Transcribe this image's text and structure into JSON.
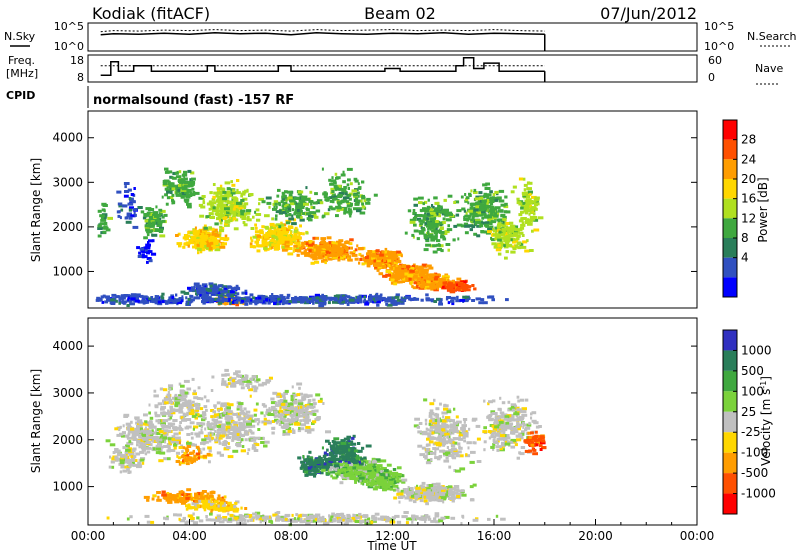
{
  "header": {
    "station": "Kodiak (fitACF)",
    "beam": "Beam 02",
    "date": "07/Jun/2012"
  },
  "side_labels": {
    "nsky": "N.Sky",
    "freq_line1": "Freq.",
    "freq_line2": "[MHz]",
    "cpid": "CPID",
    "nsearch": "N.Search",
    "nave": "Nave"
  },
  "cpid_text": "normalsound (fast) -157 RF",
  "chart_data": [
    {
      "type": "line",
      "name": "noise",
      "x_range": [
        0,
        24
      ],
      "y_ticks": [
        "10^5",
        "10^0"
      ],
      "right_ticks": [
        "10^5",
        "10^0"
      ],
      "series": [
        {
          "name": "N.Sky",
          "x": [
            0.5,
            1,
            2,
            3,
            4,
            5,
            6,
            7,
            8,
            9,
            10,
            11,
            12,
            13,
            14,
            15,
            16,
            17,
            18
          ],
          "y": [
            3.2,
            3.4,
            3.3,
            3.5,
            3.3,
            3.6,
            3.4,
            3.5,
            3.2,
            3.6,
            3.4,
            3.3,
            3.5,
            3.4,
            3.6,
            3.3,
            3.5,
            3.4,
            3.3
          ]
        },
        {
          "name": "N.Search",
          "x": [
            0.5,
            1,
            2,
            3,
            4,
            5,
            6,
            7,
            8,
            9,
            10,
            11,
            12,
            13,
            14,
            15,
            16,
            17,
            18
          ],
          "y": [
            3.8,
            4.0,
            3.9,
            4.1,
            4.0,
            4.2,
            4.0,
            4.1,
            3.9,
            4.2,
            4.0,
            4.1,
            4.2,
            4.0,
            4.1,
            4.0,
            4.2,
            4.0,
            3.9
          ]
        }
      ]
    },
    {
      "type": "line",
      "name": "frequency",
      "x_range": [
        0,
        24
      ],
      "y_ticks": [
        18,
        8
      ],
      "right_ticks": [
        60,
        0
      ],
      "series": [
        {
          "name": "Freq.",
          "x": [
            0.5,
            0.9,
            0.9,
            1.2,
            1.2,
            1.8,
            1.8,
            2.5,
            2.5,
            4.7,
            4.7,
            5.0,
            5.0,
            7.5,
            7.5,
            8.0,
            8.0,
            11.7,
            11.7,
            12.3,
            12.3,
            14.5,
            14.5,
            14.8,
            14.8,
            15.2,
            15.2,
            15.6,
            15.6,
            16.2,
            16.2,
            18.0
          ],
          "y": [
            10.5,
            10.5,
            15.5,
            15.5,
            12,
            12,
            14,
            14,
            12,
            12,
            14,
            14,
            12,
            12,
            14,
            14,
            12,
            12,
            13,
            13,
            12,
            12,
            14,
            14,
            17,
            17,
            13,
            13,
            15,
            15,
            12,
            12
          ]
        },
        {
          "name": "Nave",
          "x": [
            0.5,
            18.0
          ],
          "y": [
            14,
            14
          ]
        }
      ]
    },
    {
      "type": "heatmap",
      "name": "power",
      "xlabel": "",
      "ylabel": "Slant Range [km]",
      "x_range": [
        0,
        24
      ],
      "y_range": [
        180,
        4600
      ],
      "y_ticks": [
        1000,
        2000,
        3000,
        4000
      ],
      "colorbar_label": "Power [dB]",
      "colorbar_ticks": [
        "28",
        "24",
        "20",
        "16",
        "12",
        "8",
        "4"
      ],
      "colors": [
        "#ff0000",
        "#ff5000",
        "#ff9d00",
        "#ffd700",
        "#b0e020",
        "#3fa83f",
        "#2a7e5a",
        "#3050c0",
        "#0000ff"
      ],
      "blobs": [
        {
          "x": 0.5,
          "y": 2200,
          "w": 0.4,
          "h": 600,
          "lvl": 5,
          "n": 30
        },
        {
          "x": 1.5,
          "y": 2500,
          "w": 0.5,
          "h": 700,
          "lvl": 7,
          "n": 40
        },
        {
          "x": 2.2,
          "y": 1500,
          "w": 0.4,
          "h": 350,
          "lvl": 8,
          "n": 30
        },
        {
          "x": 2.5,
          "y": 2200,
          "w": 0.6,
          "h": 500,
          "lvl": 5,
          "n": 90
        },
        {
          "x": 3.5,
          "y": 2900,
          "w": 1.0,
          "h": 500,
          "lvl": 5,
          "n": 140
        },
        {
          "x": 4.5,
          "y": 1750,
          "w": 1.2,
          "h": 350,
          "lvl": 3,
          "n": 240
        },
        {
          "x": 5.5,
          "y": 2500,
          "w": 1.5,
          "h": 700,
          "lvl": 4,
          "n": 220
        },
        {
          "x": 5.0,
          "y": 600,
          "w": 1.5,
          "h": 200,
          "lvl": 7,
          "n": 130
        },
        {
          "x": 5.5,
          "y": 380,
          "w": 1.0,
          "h": 120,
          "lvl": 2,
          "n": 60
        },
        {
          "x": 7.5,
          "y": 1800,
          "w": 1.5,
          "h": 450,
          "lvl": 3,
          "n": 260
        },
        {
          "x": 8.0,
          "y": 2500,
          "w": 1.3,
          "h": 500,
          "lvl": 5,
          "n": 140
        },
        {
          "x": 9.5,
          "y": 1500,
          "w": 1.5,
          "h": 350,
          "lvl": 2,
          "n": 280
        },
        {
          "x": 10.0,
          "y": 2700,
          "w": 1.5,
          "h": 700,
          "lvl": 5,
          "n": 140
        },
        {
          "x": 11.5,
          "y": 1300,
          "w": 1.0,
          "h": 300,
          "lvl": 2,
          "n": 260
        },
        {
          "x": 12.5,
          "y": 1000,
          "w": 1.2,
          "h": 300,
          "lvl": 2,
          "n": 240
        },
        {
          "x": 13.5,
          "y": 800,
          "w": 1.2,
          "h": 250,
          "lvl": 2,
          "n": 220
        },
        {
          "x": 13.5,
          "y": 2100,
          "w": 1.2,
          "h": 800,
          "lvl": 5,
          "n": 200
        },
        {
          "x": 14.5,
          "y": 700,
          "w": 0.8,
          "h": 150,
          "lvl": 1,
          "n": 110
        },
        {
          "x": 15.5,
          "y": 2400,
          "w": 1.5,
          "h": 800,
          "lvl": 5,
          "n": 240
        },
        {
          "x": 16.5,
          "y": 1800,
          "w": 1.0,
          "h": 500,
          "lvl": 4,
          "n": 140
        },
        {
          "x": 17.3,
          "y": 2500,
          "w": 0.6,
          "h": 700,
          "lvl": 4,
          "n": 100
        },
        {
          "x": 9.0,
          "y": 400,
          "w": 9.0,
          "h": 150,
          "lvl": 7,
          "n": 420
        },
        {
          "x": 2.0,
          "y": 400,
          "w": 4.0,
          "h": 150,
          "lvl": 7,
          "n": 160
        }
      ]
    },
    {
      "type": "heatmap",
      "name": "velocity",
      "xlabel": "Time UT",
      "ylabel": "Slant Range [km]",
      "x_range": [
        0,
        24
      ],
      "y_range": [
        180,
        4600
      ],
      "y_ticks": [
        1000,
        2000,
        3000,
        4000
      ],
      "x_ticks": [
        "00:00",
        "04:00",
        "08:00",
        "12:00",
        "16:00",
        "20:00",
        "00:00"
      ],
      "colorbar_label": "Velocity [m s^-1]",
      "colorbar_ticks": [
        "1000",
        "500",
        "100",
        "25",
        "-25",
        "-100",
        "-500",
        "-1000"
      ],
      "colors": [
        "#3030c0",
        "#2a7e5a",
        "#3fa83f",
        "#7bd23b",
        "#c0c0c0",
        "#ffd700",
        "#ff9d00",
        "#ff5000",
        "#ff0000"
      ],
      "blobs": [
        {
          "x": 2.5,
          "y": 2100,
          "w": 2.0,
          "h": 600,
          "lvl": 4,
          "n": 240
        },
        {
          "x": 3.5,
          "y": 2800,
          "w": 1.5,
          "h": 600,
          "lvl": 4,
          "n": 140
        },
        {
          "x": 5.5,
          "y": 2300,
          "w": 2.0,
          "h": 800,
          "lvl": 4,
          "n": 320
        },
        {
          "x": 4.0,
          "y": 800,
          "w": 2.0,
          "h": 200,
          "lvl": 6,
          "n": 140
        },
        {
          "x": 5.0,
          "y": 600,
          "w": 1.5,
          "h": 150,
          "lvl": 5,
          "n": 120
        },
        {
          "x": 4.0,
          "y": 1700,
          "w": 0.8,
          "h": 300,
          "lvl": 6,
          "n": 50
        },
        {
          "x": 8.0,
          "y": 2600,
          "w": 1.5,
          "h": 700,
          "lvl": 4,
          "n": 260
        },
        {
          "x": 9.0,
          "y": 1500,
          "w": 1.0,
          "h": 300,
          "lvl": 1,
          "n": 180
        },
        {
          "x": 10.5,
          "y": 1400,
          "w": 1.5,
          "h": 350,
          "lvl": 3,
          "n": 280
        },
        {
          "x": 11.5,
          "y": 1200,
          "w": 1.2,
          "h": 300,
          "lvl": 3,
          "n": 240
        },
        {
          "x": 10.0,
          "y": 1800,
          "w": 1.0,
          "h": 400,
          "lvl": 1,
          "n": 160
        },
        {
          "x": 13.5,
          "y": 900,
          "w": 2.0,
          "h": 250,
          "lvl": 4,
          "n": 260
        },
        {
          "x": 14.0,
          "y": 2100,
          "w": 1.5,
          "h": 900,
          "lvl": 4,
          "n": 260
        },
        {
          "x": 16.5,
          "y": 2300,
          "w": 1.5,
          "h": 800,
          "lvl": 4,
          "n": 240
        },
        {
          "x": 17.5,
          "y": 2000,
          "w": 0.5,
          "h": 300,
          "lvl": 7,
          "n": 60
        },
        {
          "x": 6.0,
          "y": 3300,
          "w": 1.5,
          "h": 300,
          "lvl": 4,
          "n": 70
        },
        {
          "x": 9.0,
          "y": 350,
          "w": 9.0,
          "h": 150,
          "lvl": 4,
          "n": 300
        },
        {
          "x": 1.5,
          "y": 1600,
          "w": 1.0,
          "h": 400,
          "lvl": 4,
          "n": 90
        }
      ]
    }
  ]
}
